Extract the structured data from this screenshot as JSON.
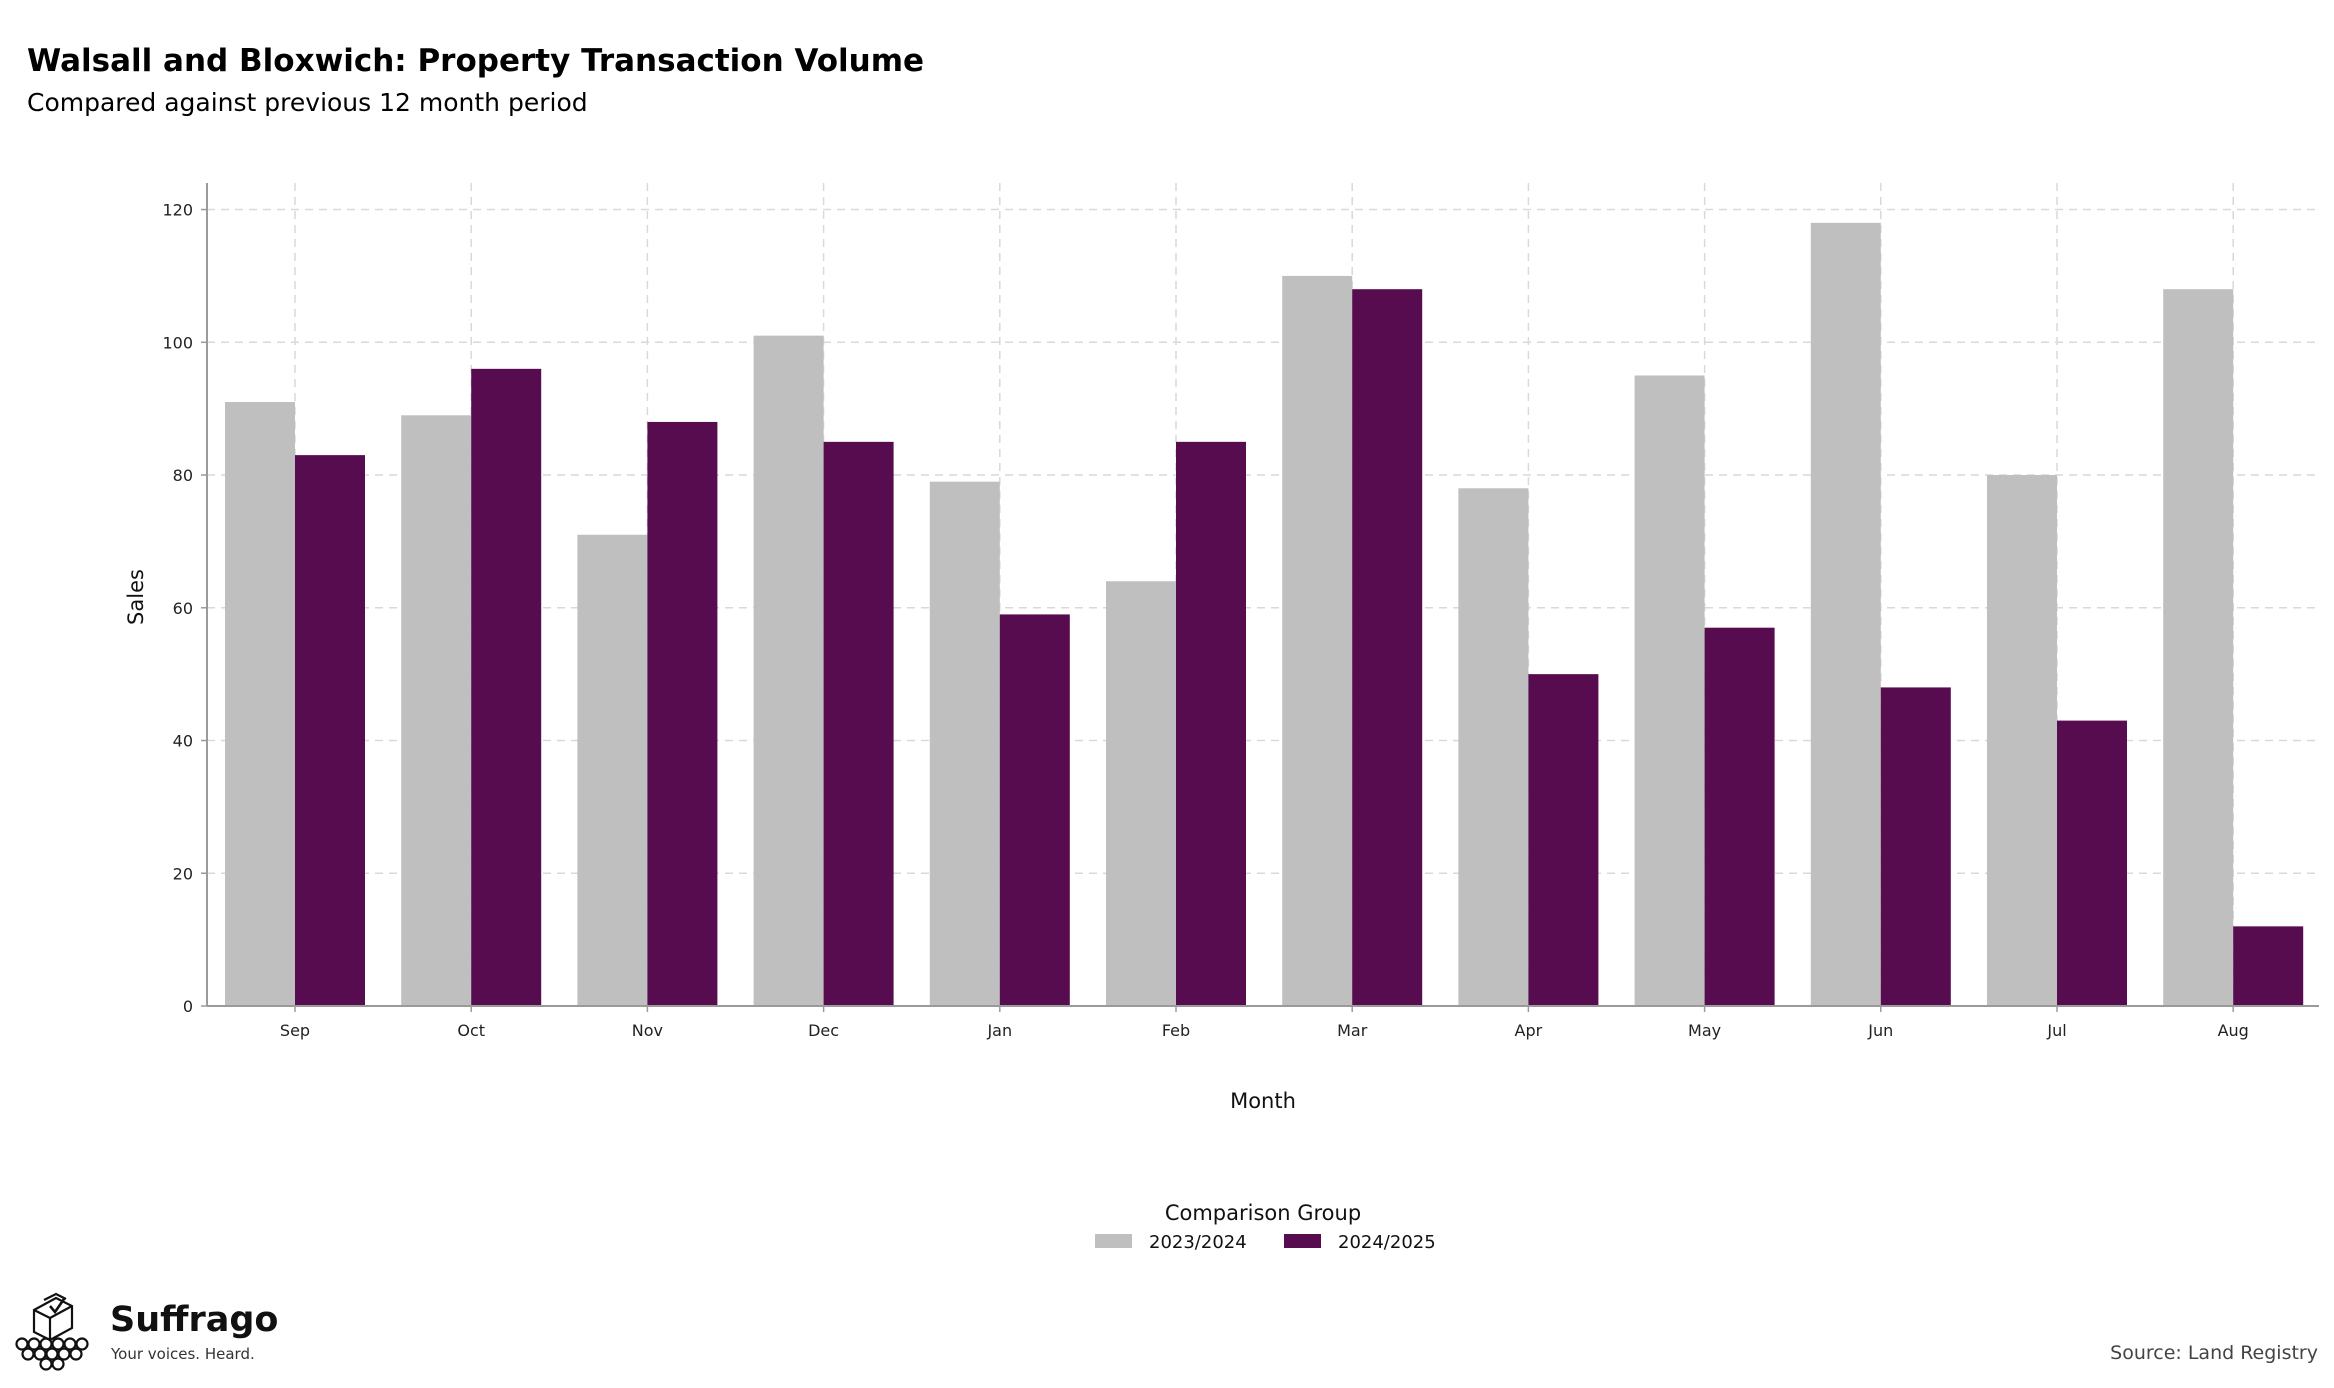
{
  "title": "Walsall and Bloxwich: Property Transaction Volume",
  "subtitle": "Compared against previous 12 month period",
  "source": "Source: Land Registry",
  "brand": {
    "name": "Suffrago",
    "tagline": "Your voices. Heard.",
    "icon": "ballot-box-crowd-icon"
  },
  "colors": {
    "series1": "#bfbfbf",
    "series2": "#560c4f",
    "grid": "#d9d9d9",
    "axis": "#9a9a9a"
  },
  "chart_data": {
    "type": "bar",
    "categories": [
      "Sep",
      "Oct",
      "Nov",
      "Dec",
      "Jan",
      "Feb",
      "Mar",
      "Apr",
      "May",
      "Jun",
      "Jul",
      "Aug"
    ],
    "series": [
      {
        "name": "2023/2024",
        "values": [
          91,
          89,
          71,
          101,
          79,
          64,
          110,
          78,
          95,
          118,
          80,
          108
        ]
      },
      {
        "name": "2024/2025",
        "values": [
          83,
          96,
          88,
          85,
          59,
          85,
          108,
          50,
          57,
          48,
          43,
          12
        ]
      }
    ],
    "xlabel": "Month",
    "ylabel": "Sales",
    "ylim": [
      0,
      124
    ],
    "yticks": [
      0,
      20,
      40,
      60,
      80,
      100,
      120
    ],
    "grid": true,
    "legend": {
      "title": "Comparison Group",
      "position": "bottom"
    }
  }
}
